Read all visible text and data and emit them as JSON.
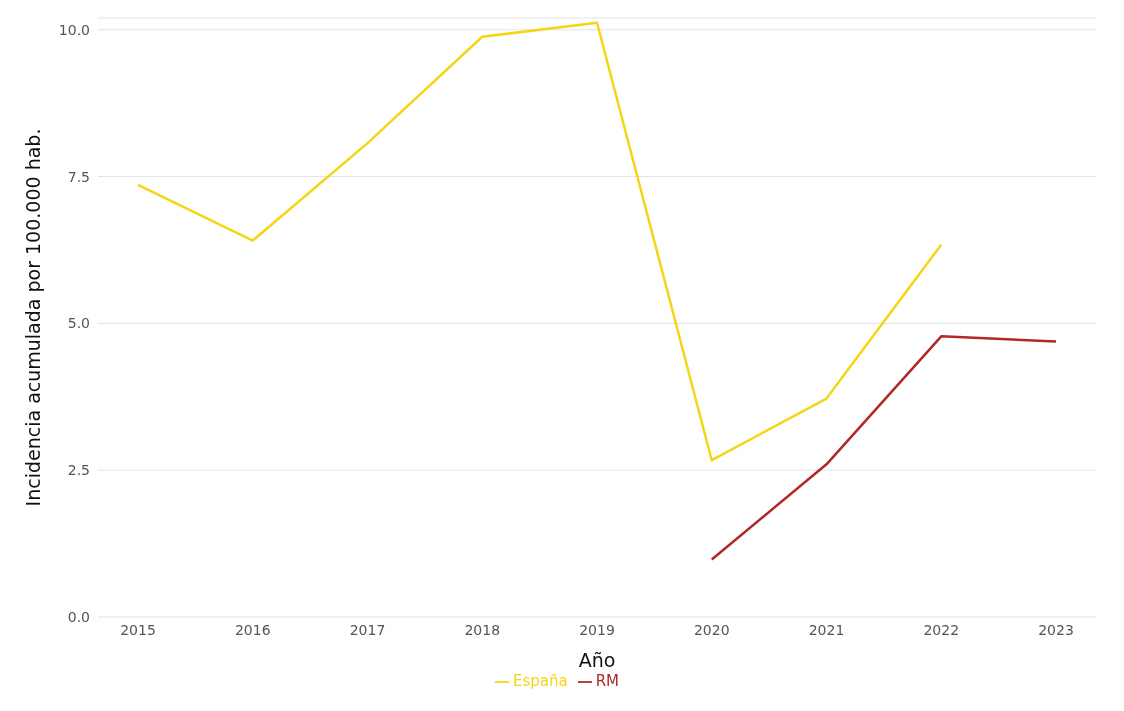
{
  "chart_data": {
    "type": "line",
    "xlabel": "Año",
    "ylabel": "Incidencia acumulada por 100.000 hab.",
    "categories": [
      "2015",
      "2016",
      "2017",
      "2018",
      "2019",
      "2020",
      "2021",
      "2022",
      "2023"
    ],
    "series": [
      {
        "name": "España",
        "color": "#f5d516",
        "values": [
          7.36,
          6.41,
          8.07,
          9.88,
          10.12,
          2.67,
          3.72,
          6.34,
          null
        ]
      },
      {
        "name": "RM",
        "color": "#b22727",
        "values": [
          null,
          null,
          null,
          null,
          null,
          0.98,
          2.6,
          4.78,
          4.69
        ]
      }
    ],
    "ylim": [
      0,
      10.2
    ],
    "yticks": [
      {
        "value": 0,
        "label": "0.0"
      },
      {
        "value": 2.5,
        "label": "2.5"
      },
      {
        "value": 5,
        "label": "5.0"
      },
      {
        "value": 7.5,
        "label": "7.5"
      },
      {
        "value": 10,
        "label": "10.0"
      }
    ],
    "grid": "y",
    "legend": "bottom",
    "marker": "none",
    "line_style": "solid"
  }
}
